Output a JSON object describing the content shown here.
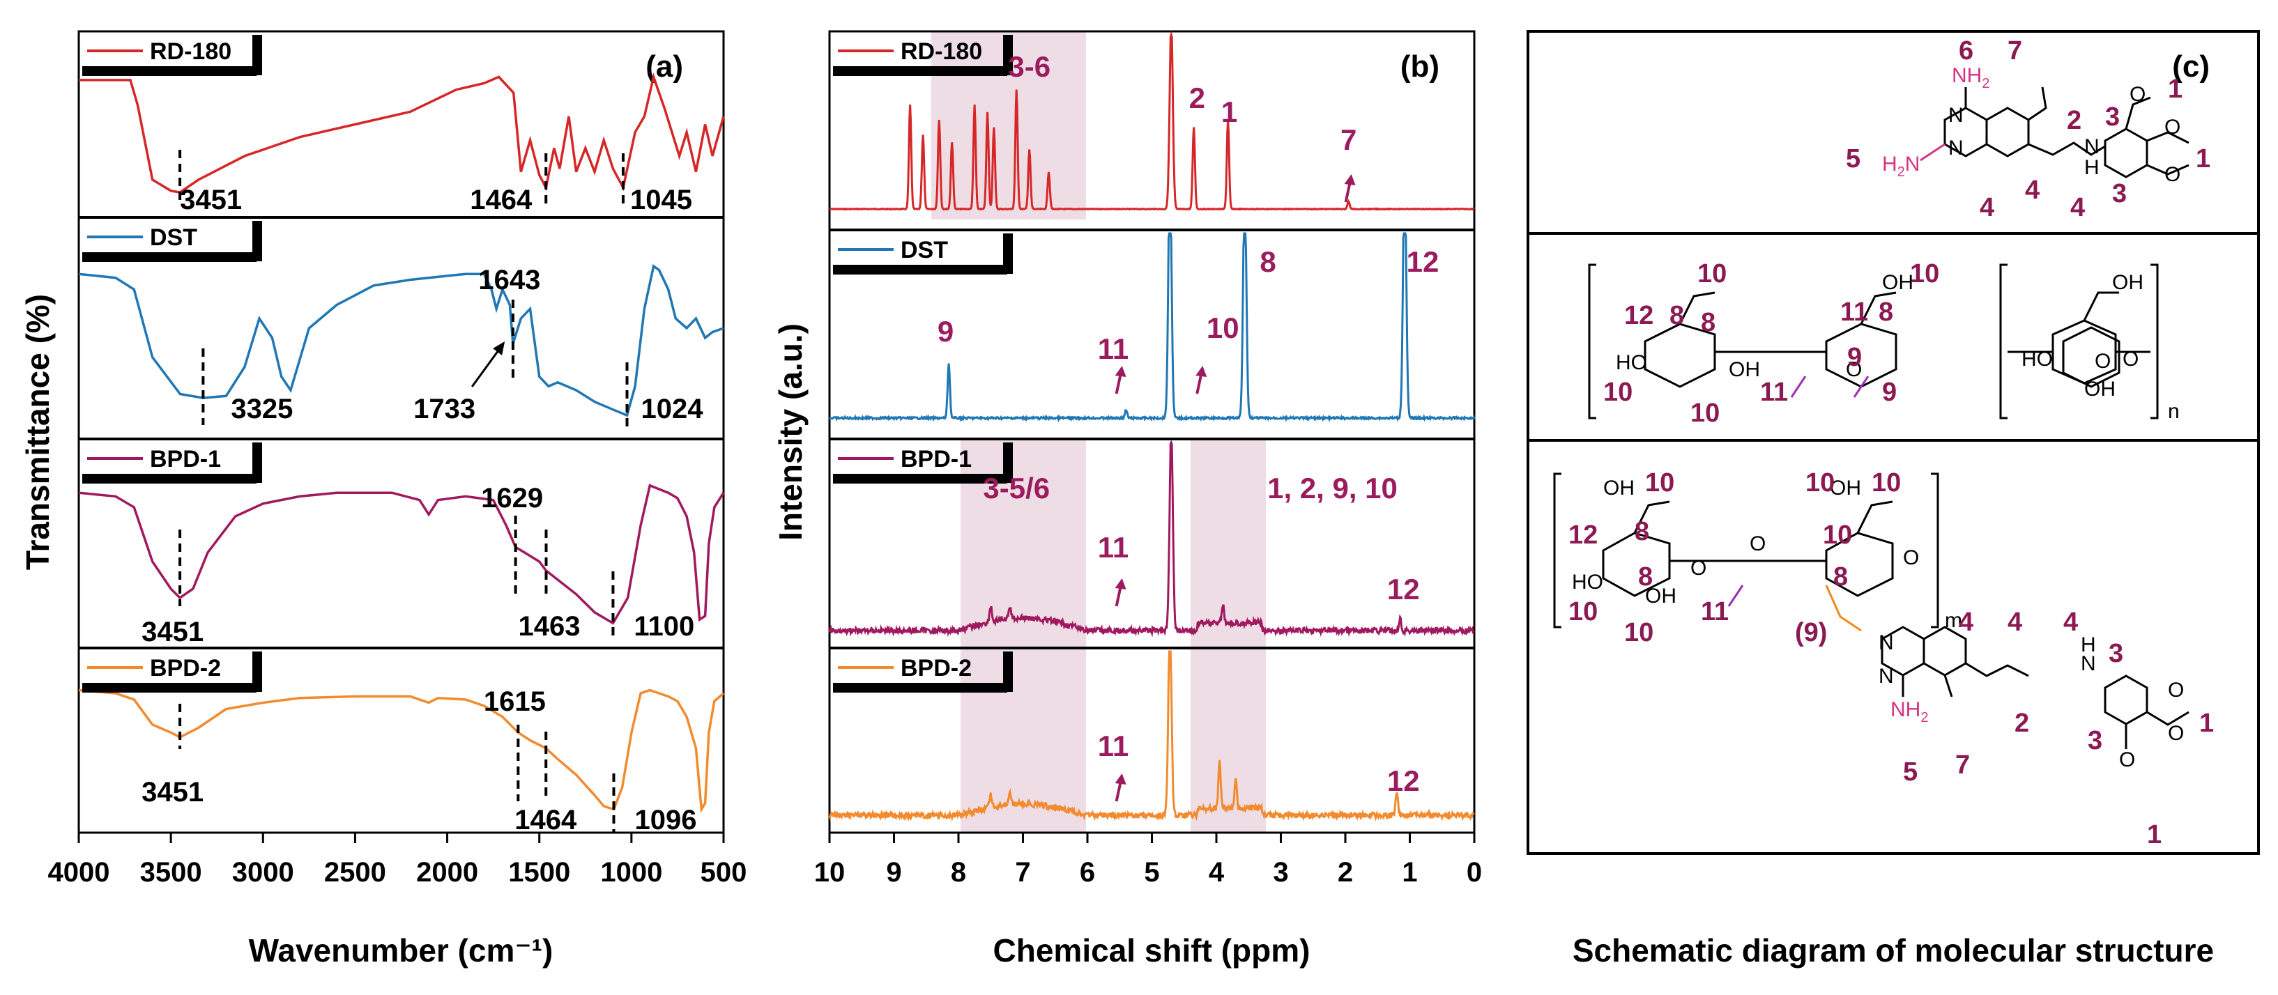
{
  "chart_data": [
    {
      "panel": "(a)",
      "type": "line",
      "title": "",
      "xlabel": "Wavenumber (cm⁻¹)",
      "ylabel": "Transmittance (%)",
      "xlim": [
        4000,
        500
      ],
      "x_ticks": [
        "4000",
        "3500",
        "3000",
        "2500",
        "2000",
        "1500",
        "1000",
        "500"
      ],
      "colors": {
        "RD-180": "#d62728",
        "DST": "#1f77b4",
        "BPD-1": "#a0195e",
        "BPD-2": "#f28a2e"
      },
      "series": [
        {
          "name": "RD-180",
          "points": [
            [
              4000,
              0.78
            ],
            [
              3720,
              0.78
            ],
            [
              3680,
              0.62
            ],
            [
              3600,
              0.15
            ],
            [
              3500,
              0.08
            ],
            [
              3451,
              0.07
            ],
            [
              3350,
              0.15
            ],
            [
              3100,
              0.3
            ],
            [
              2800,
              0.42
            ],
            [
              2500,
              0.5
            ],
            [
              2200,
              0.58
            ],
            [
              1950,
              0.72
            ],
            [
              1800,
              0.76
            ],
            [
              1720,
              0.8
            ],
            [
              1640,
              0.7
            ],
            [
              1600,
              0.2
            ],
            [
              1550,
              0.4
            ],
            [
              1500,
              0.18
            ],
            [
              1464,
              0.1
            ],
            [
              1420,
              0.35
            ],
            [
              1390,
              0.22
            ],
            [
              1340,
              0.55
            ],
            [
              1300,
              0.2
            ],
            [
              1250,
              0.35
            ],
            [
              1200,
              0.2
            ],
            [
              1150,
              0.4
            ],
            [
              1100,
              0.22
            ],
            [
              1045,
              0.1
            ],
            [
              980,
              0.45
            ],
            [
              930,
              0.55
            ],
            [
              880,
              0.8
            ],
            [
              820,
              0.6
            ],
            [
              780,
              0.45
            ],
            [
              740,
              0.3
            ],
            [
              700,
              0.45
            ],
            [
              650,
              0.2
            ],
            [
              600,
              0.5
            ],
            [
              560,
              0.3
            ],
            [
              500,
              0.55
            ]
          ],
          "peak_labels": [
            "3451",
            "1464",
            "1045"
          ]
        },
        {
          "name": "DST",
          "points": [
            [
              4000,
              0.78
            ],
            [
              3800,
              0.76
            ],
            [
              3700,
              0.7
            ],
            [
              3600,
              0.35
            ],
            [
              3450,
              0.16
            ],
            [
              3325,
              0.14
            ],
            [
              3200,
              0.15
            ],
            [
              3100,
              0.3
            ],
            [
              3020,
              0.55
            ],
            [
              2950,
              0.45
            ],
            [
              2900,
              0.25
            ],
            [
              2850,
              0.18
            ],
            [
              2750,
              0.5
            ],
            [
              2600,
              0.62
            ],
            [
              2400,
              0.72
            ],
            [
              2200,
              0.75
            ],
            [
              2000,
              0.77
            ],
            [
              1900,
              0.78
            ],
            [
              1800,
              0.78
            ],
            [
              1760,
              0.7
            ],
            [
              1733,
              0.6
            ],
            [
              1700,
              0.7
            ],
            [
              1660,
              0.62
            ],
            [
              1643,
              0.42
            ],
            [
              1600,
              0.55
            ],
            [
              1550,
              0.6
            ],
            [
              1500,
              0.25
            ],
            [
              1450,
              0.2
            ],
            [
              1400,
              0.22
            ],
            [
              1300,
              0.18
            ],
            [
              1200,
              0.12
            ],
            [
              1100,
              0.08
            ],
            [
              1024,
              0.05
            ],
            [
              980,
              0.2
            ],
            [
              930,
              0.6
            ],
            [
              880,
              0.82
            ],
            [
              850,
              0.8
            ],
            [
              800,
              0.7
            ],
            [
              760,
              0.55
            ],
            [
              700,
              0.5
            ],
            [
              650,
              0.55
            ],
            [
              600,
              0.45
            ],
            [
              560,
              0.48
            ],
            [
              500,
              0.5
            ]
          ],
          "peak_labels": [
            "1643",
            "3325",
            "1733",
            "1024"
          ]
        },
        {
          "name": "BPD-1",
          "points": [
            [
              4000,
              0.78
            ],
            [
              3800,
              0.76
            ],
            [
              3700,
              0.7
            ],
            [
              3600,
              0.4
            ],
            [
              3500,
              0.25
            ],
            [
              3451,
              0.2
            ],
            [
              3380,
              0.25
            ],
            [
              3300,
              0.45
            ],
            [
              3150,
              0.65
            ],
            [
              3000,
              0.72
            ],
            [
              2800,
              0.76
            ],
            [
              2600,
              0.78
            ],
            [
              2300,
              0.78
            ],
            [
              2150,
              0.74
            ],
            [
              2100,
              0.66
            ],
            [
              2050,
              0.74
            ],
            [
              1900,
              0.76
            ],
            [
              1750,
              0.74
            ],
            [
              1680,
              0.6
            ],
            [
              1629,
              0.48
            ],
            [
              1580,
              0.45
            ],
            [
              1500,
              0.4
            ],
            [
              1463,
              0.35
            ],
            [
              1400,
              0.3
            ],
            [
              1300,
              0.22
            ],
            [
              1200,
              0.12
            ],
            [
              1100,
              0.06
            ],
            [
              1020,
              0.2
            ],
            [
              950,
              0.6
            ],
            [
              900,
              0.82
            ],
            [
              850,
              0.8
            ],
            [
              800,
              0.78
            ],
            [
              750,
              0.75
            ],
            [
              700,
              0.65
            ],
            [
              660,
              0.45
            ],
            [
              630,
              0.08
            ],
            [
              600,
              0.1
            ],
            [
              580,
              0.5
            ],
            [
              550,
              0.7
            ],
            [
              500,
              0.78
            ]
          ],
          "peak_labels": [
            "1629",
            "3451",
            "1463",
            "1100"
          ]
        },
        {
          "name": "BPD-2",
          "points": [
            [
              4000,
              0.82
            ],
            [
              3800,
              0.8
            ],
            [
              3700,
              0.76
            ],
            [
              3600,
              0.6
            ],
            [
              3500,
              0.55
            ],
            [
              3451,
              0.52
            ],
            [
              3350,
              0.58
            ],
            [
              3200,
              0.7
            ],
            [
              3000,
              0.74
            ],
            [
              2800,
              0.77
            ],
            [
              2500,
              0.78
            ],
            [
              2200,
              0.78
            ],
            [
              2100,
              0.74
            ],
            [
              2050,
              0.77
            ],
            [
              1900,
              0.76
            ],
            [
              1800,
              0.72
            ],
            [
              1700,
              0.65
            ],
            [
              1615,
              0.55
            ],
            [
              1550,
              0.5
            ],
            [
              1464,
              0.45
            ],
            [
              1400,
              0.38
            ],
            [
              1300,
              0.28
            ],
            [
              1200,
              0.15
            ],
            [
              1150,
              0.08
            ],
            [
              1096,
              0.06
            ],
            [
              1050,
              0.2
            ],
            [
              1000,
              0.55
            ],
            [
              950,
              0.8
            ],
            [
              900,
              0.82
            ],
            [
              850,
              0.8
            ],
            [
              800,
              0.78
            ],
            [
              750,
              0.75
            ],
            [
              700,
              0.65
            ],
            [
              650,
              0.45
            ],
            [
              620,
              0.06
            ],
            [
              600,
              0.1
            ],
            [
              580,
              0.55
            ],
            [
              550,
              0.75
            ],
            [
              500,
              0.8
            ]
          ],
          "peak_labels": [
            "1615",
            "3451",
            "1464",
            "1096"
          ]
        }
      ]
    },
    {
      "panel": "(b)",
      "type": "line",
      "title": "",
      "xlabel": "Chemical shift (ppm)",
      "ylabel": "Intensity (a.u.)",
      "xlim": [
        10,
        0
      ],
      "x_ticks": [
        "10",
        "9",
        "8",
        "7",
        "6",
        "5",
        "4",
        "3",
        "2",
        "1",
        "0"
      ],
      "series": [
        {
          "name": "RD-180",
          "peaks": [
            [
              8.75,
              0.7
            ],
            [
              8.55,
              0.5
            ],
            [
              8.3,
              0.6
            ],
            [
              8.1,
              0.45
            ],
            [
              7.75,
              0.7
            ],
            [
              7.55,
              0.65
            ],
            [
              7.45,
              0.55
            ],
            [
              7.1,
              0.8
            ],
            [
              6.9,
              0.4
            ],
            [
              6.6,
              0.25
            ],
            [
              4.7,
              1.25
            ],
            [
              4.35,
              0.55
            ],
            [
              3.82,
              0.6
            ],
            [
              1.95,
              0.05
            ]
          ],
          "labels": [
            "3-6",
            "2",
            "1",
            "7"
          ]
        },
        {
          "name": "DST",
          "peaks": [
            [
              8.15,
              0.35
            ],
            [
              5.4,
              0.05
            ],
            [
              4.72,
              1.6
            ],
            [
              3.56,
              1.5
            ],
            [
              1.08,
              1.6
            ]
          ],
          "labels": [
            "9",
            "11",
            "10",
            "8",
            "12"
          ]
        },
        {
          "name": "BPD-1",
          "peaks": [
            [
              7.5,
              0.1
            ],
            [
              7.2,
              0.08
            ],
            [
              4.7,
              1.3
            ],
            [
              3.9,
              0.12
            ],
            [
              1.15,
              0.08
            ]
          ],
          "labels": [
            "3-5/6",
            "1, 2, 9, 10",
            "11",
            "12"
          ]
        },
        {
          "name": "BPD-2",
          "peaks": [
            [
              7.5,
              0.1
            ],
            [
              7.2,
              0.08
            ],
            [
              4.72,
              1.4
            ],
            [
              3.95,
              0.35
            ],
            [
              3.7,
              0.2
            ],
            [
              1.2,
              0.18
            ]
          ],
          "labels": [
            "11",
            "12"
          ]
        }
      ]
    }
  ],
  "panels": {
    "a": {
      "letter": "(a)",
      "legend": [
        "RD-180",
        "DST",
        "BPD-1",
        "BPD-2"
      ]
    },
    "b": {
      "letter": "(b)",
      "legend": [
        "RD-180",
        "DST",
        "BPD-1",
        "BPD-2"
      ]
    },
    "c": {
      "letter": "(c)",
      "caption": "Schematic diagram of molecular structure"
    }
  },
  "molecule": {
    "atoms": {
      "NH2": "NH",
      "NH2_sub": "2",
      "H2N": "H",
      "H2N_sub": "2",
      "H2N_N": "N",
      "N": "N",
      "H": "H",
      "O": "O",
      "OH": "OH",
      "HO": "HO",
      "n": "n",
      "m": "m"
    },
    "mol1_numbers": [
      "6",
      "7",
      "2",
      "1",
      "3",
      "5",
      "3",
      "1",
      "4",
      "4",
      "4"
    ],
    "mol2_numbers": [
      "10",
      "10",
      "12",
      "8",
      "8",
      "11",
      "8",
      "10",
      "9",
      "11",
      "10",
      "10",
      "9"
    ],
    "mol3_numbers": [
      "10",
      "10",
      "10",
      "10",
      "12",
      "8",
      "8",
      "8",
      "10",
      "11",
      "10",
      "(9)",
      "4",
      "4",
      "4",
      "3",
      "2",
      "3",
      "1",
      "5",
      "7",
      "1"
    ]
  }
}
